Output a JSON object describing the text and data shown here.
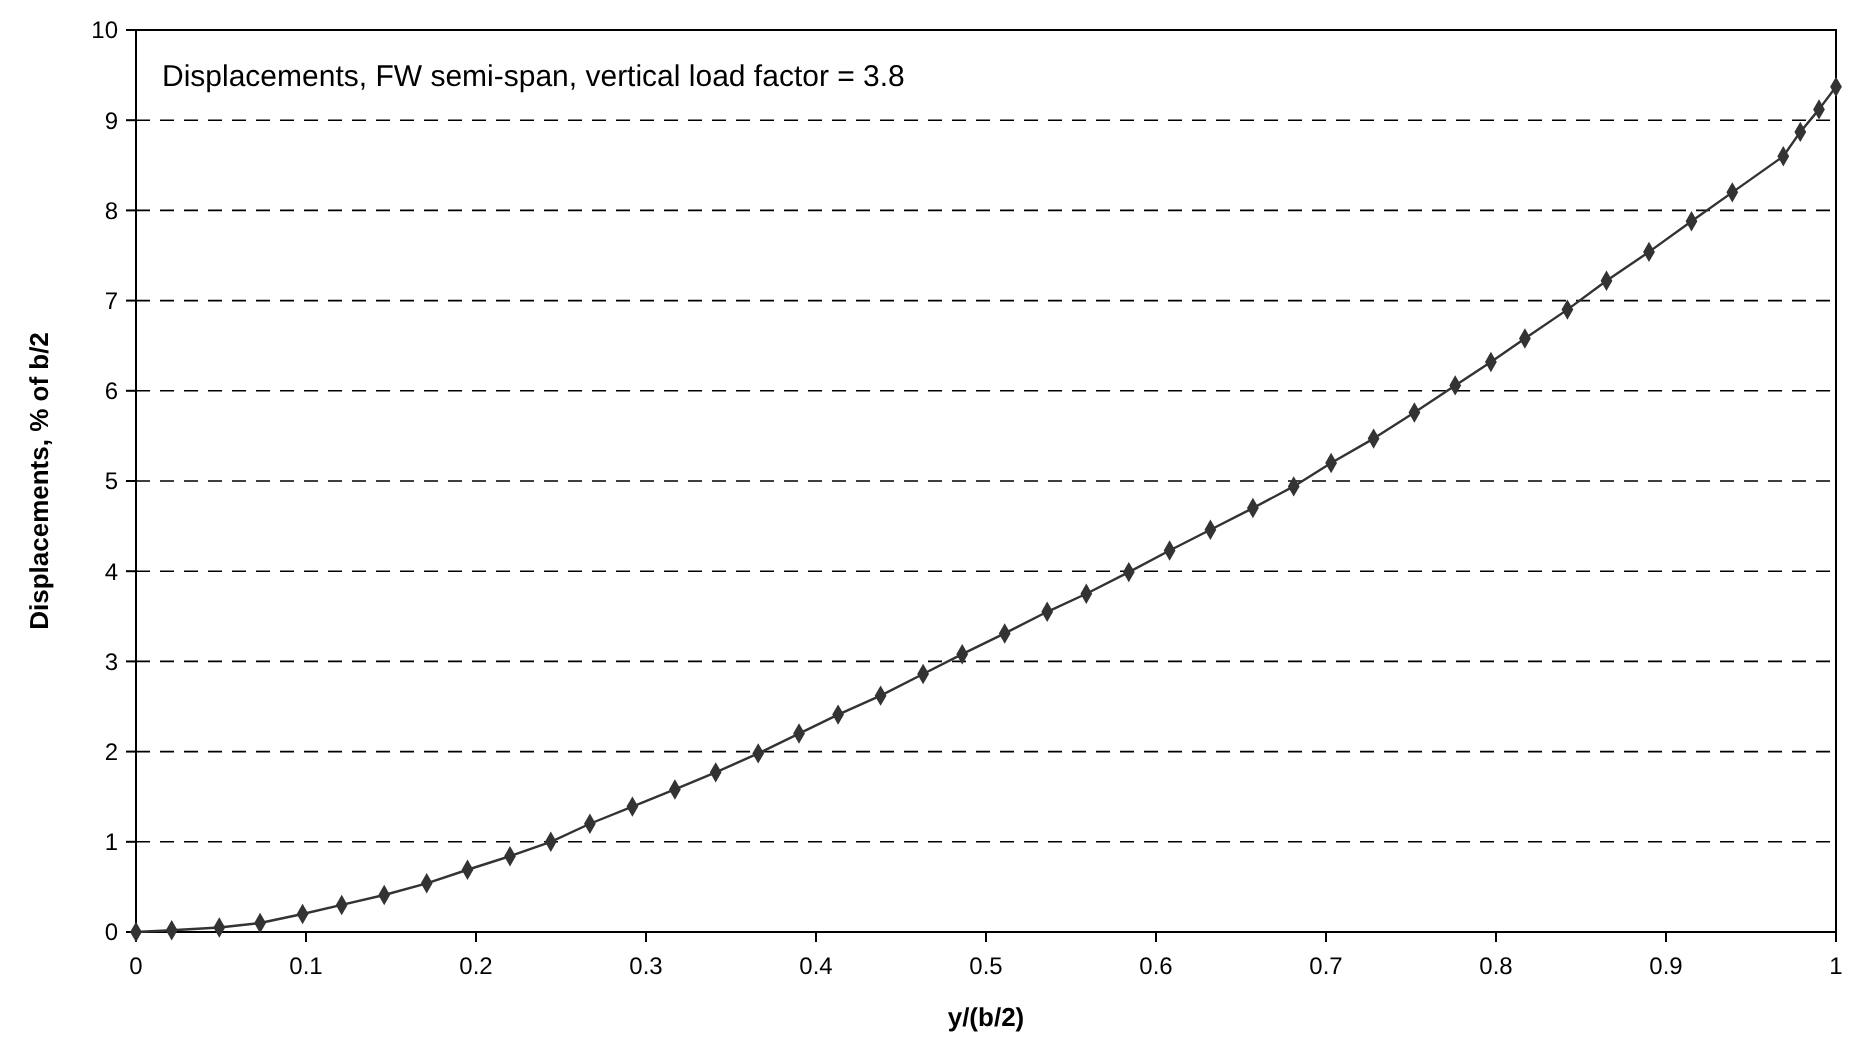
{
  "chart_data": {
    "type": "line",
    "title": "Displacements, FW semi-span, vertical load factor = 3.8",
    "xlabel": "y/(b/2)",
    "ylabel": "Displacements, % of b/2",
    "x": [
      0,
      0.021,
      0.049,
      0.073,
      0.098,
      0.121,
      0.146,
      0.171,
      0.195,
      0.22,
      0.244,
      0.267,
      0.292,
      0.317,
      0.341,
      0.366,
      0.39,
      0.413,
      0.438,
      0.463,
      0.486,
      0.511,
      0.536,
      0.559,
      0.584,
      0.608,
      0.632,
      0.657,
      0.681,
      0.703,
      0.728,
      0.752,
      0.776,
      0.797,
      0.817,
      0.842,
      0.865,
      0.89,
      0.915,
      0.939,
      0.969,
      0.979,
      0.99,
      1.0
    ],
    "series": [
      {
        "color": "#333333",
        "values": [
          0,
          0.02,
          0.05,
          0.1,
          0.2,
          0.3,
          0.41,
          0.54,
          0.69,
          0.84,
          1.0,
          1.2,
          1.39,
          1.58,
          1.77,
          1.98,
          2.2,
          2.41,
          2.62,
          2.86,
          3.08,
          3.31,
          3.55,
          3.75,
          3.99,
          4.23,
          4.46,
          4.7,
          4.94,
          5.2,
          5.47,
          5.76,
          6.06,
          6.32,
          6.58,
          6.9,
          7.22,
          7.54,
          7.88,
          8.2,
          8.6,
          8.87,
          9.12,
          9.37
        ]
      }
    ],
    "xlim": [
      0,
      1
    ],
    "xticks": [
      0,
      0.1,
      0.2,
      0.3,
      0.4,
      0.5,
      0.6,
      0.7,
      0.8,
      0.9,
      1
    ],
    "ylim": [
      0,
      10
    ],
    "yticks": [
      0,
      1,
      2,
      3,
      4,
      5,
      6,
      7,
      8,
      9,
      10
    ],
    "grid": "y",
    "line_style": "solid",
    "marker": "diamond"
  }
}
